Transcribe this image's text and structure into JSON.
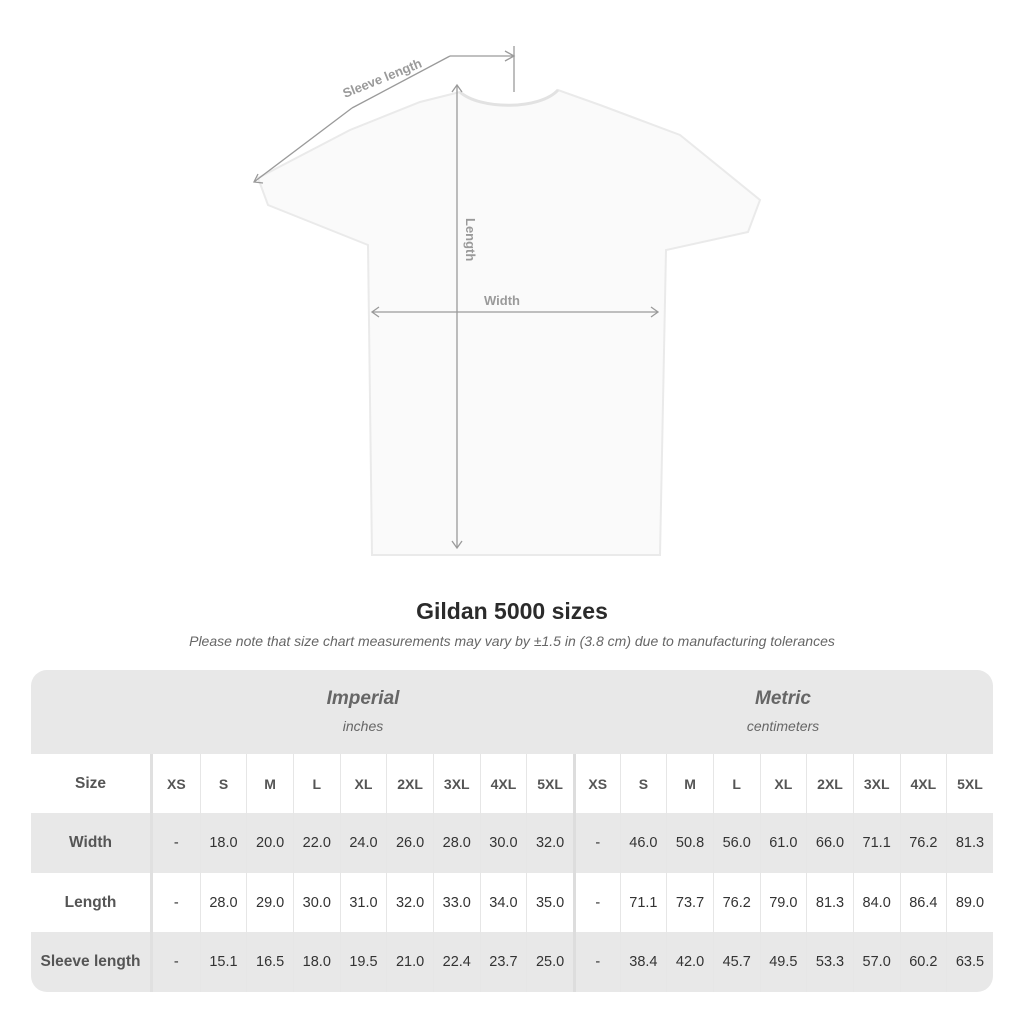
{
  "diagram": {
    "sleeve_label": "Sleeve length",
    "length_label": "Length",
    "width_label": "Width",
    "line_color": "#9a9a9a"
  },
  "title": "Gildan 5000 sizes",
  "note": "Please note that size chart measurements may vary by ±1.5 in (3.8 cm) due to manufacturing tolerances",
  "table": {
    "imperial": {
      "name": "Imperial",
      "unit": "inches"
    },
    "metric": {
      "name": "Metric",
      "unit": "centimeters"
    },
    "size_label": "Size",
    "sizes": [
      "XS",
      "S",
      "M",
      "L",
      "XL",
      "2XL",
      "3XL",
      "4XL",
      "5XL"
    ],
    "rows": [
      {
        "label": "Width",
        "imperial": [
          "-",
          "18.0",
          "20.0",
          "22.0",
          "24.0",
          "26.0",
          "28.0",
          "30.0",
          "32.0"
        ],
        "metric": [
          "-",
          "46.0",
          "50.8",
          "56.0",
          "61.0",
          "66.0",
          "71.1",
          "76.2",
          "81.3"
        ]
      },
      {
        "label": "Length",
        "imperial": [
          "-",
          "28.0",
          "29.0",
          "30.0",
          "31.0",
          "32.0",
          "33.0",
          "34.0",
          "35.0"
        ],
        "metric": [
          "-",
          "71.1",
          "73.7",
          "76.2",
          "79.0",
          "81.3",
          "84.0",
          "86.4",
          "89.0"
        ]
      },
      {
        "label": "Sleeve length",
        "imperial": [
          "-",
          "15.1",
          "16.5",
          "18.0",
          "19.5",
          "21.0",
          "22.4",
          "23.7",
          "25.0"
        ],
        "metric": [
          "-",
          "38.4",
          "42.0",
          "45.7",
          "49.5",
          "53.3",
          "57.0",
          "60.2",
          "63.5"
        ]
      }
    ]
  }
}
